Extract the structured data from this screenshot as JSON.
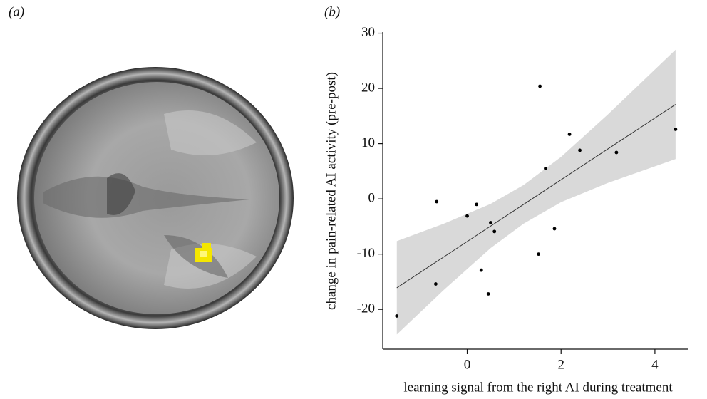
{
  "panel_labels": {
    "a": "(a)",
    "b": "(b)"
  },
  "chart_data": {
    "type": "scatter",
    "xlabel": "learning signal from the right AI during treatment",
    "ylabel": "change in pain-related AI activity (pre-post)",
    "x": [
      -1.5,
      -0.65,
      -0.67,
      0,
      0.2,
      0.45,
      0.5,
      0.3,
      0.58,
      1.52,
      1.55,
      1.67,
      1.86,
      2.18,
      2.4,
      3.18,
      4.44
    ],
    "values": [
      -21.2,
      -0.5,
      -15.4,
      -3.1,
      -1.0,
      -17.2,
      -4.3,
      -12.9,
      -5.9,
      -10.0,
      20.4,
      5.5,
      -5.4,
      11.7,
      8.8,
      8.4,
      12.6
    ],
    "color": "#000000",
    "fit": {
      "x": [
        -1.5,
        4.44
      ],
      "values": [
        -16.1,
        17.1
      ],
      "color": "#333333"
    },
    "band": {
      "x": [
        -1.5,
        -0.5,
        0.5,
        1.2,
        2,
        3,
        4.44
      ],
      "lower": [
        -24.55,
        -16.5,
        -8.9,
        -4.5,
        -0.6,
        2.9,
        7.2
      ],
      "upper": [
        -7.65,
        -4.5,
        -0.9,
        2.5,
        7.6,
        15.3,
        27.0
      ],
      "color": "#d9d9d9"
    },
    "xlim": [
      -1.8,
      4.7
    ],
    "xticks": [
      0,
      2,
      4
    ],
    "ylim": [
      -27.2,
      30.2
    ],
    "yticks": [
      -20,
      -10,
      0,
      10,
      20,
      30
    ],
    "grid": false
  }
}
